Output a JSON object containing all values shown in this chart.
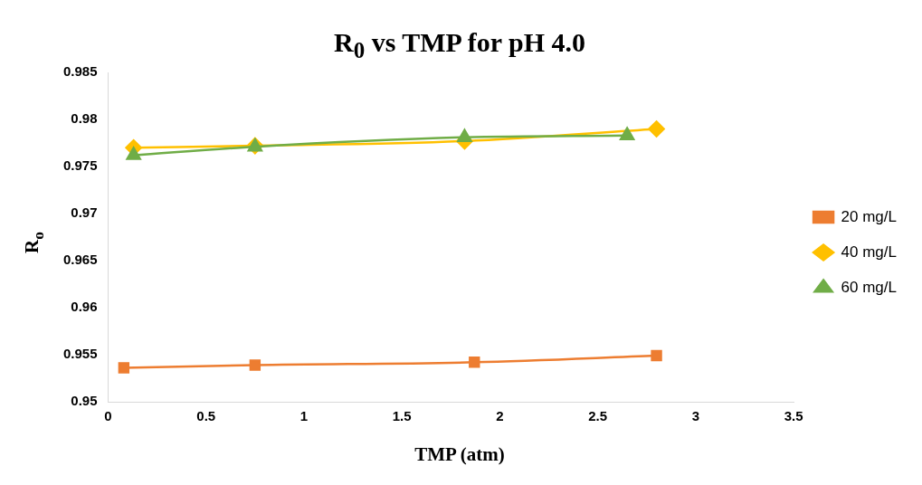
{
  "chart_data": {
    "type": "line",
    "title": "R$_{0}$  vs TMP for pH 4.0",
    "xlabel": "TMP (atm)",
    "ylabel": "R$_{o}$",
    "xlim": [
      0,
      3.5
    ],
    "xticks": [
      0,
      0.5,
      1,
      1.5,
      2,
      2.5,
      3,
      3.5
    ],
    "ylim": [
      0.95,
      0.985
    ],
    "yticks": [
      0.95,
      0.955,
      0.96,
      0.965,
      0.97,
      0.975,
      0.98,
      0.985
    ],
    "grid": false,
    "legend": "right",
    "series": [
      {
        "name": "20 mg/L",
        "color": "#ed7d31",
        "marker": "square",
        "x": [
          0.08,
          0.75,
          1.87,
          2.8
        ],
        "values": [
          0.9536,
          0.9539,
          0.9542,
          0.9549
        ]
      },
      {
        "name": "40 mg/L",
        "color": "#ffc000",
        "marker": "diamond",
        "x": [
          0.13,
          0.75,
          1.82,
          2.8
        ],
        "values": [
          0.977,
          0.9772,
          0.9777,
          0.979
        ]
      },
      {
        "name": "60 mg/L",
        "color": "#70ad47",
        "marker": "triangle",
        "x": [
          0.13,
          0.75,
          1.82,
          2.65
        ],
        "values": [
          0.9762,
          0.9771,
          0.9781,
          0.9783
        ]
      }
    ]
  }
}
